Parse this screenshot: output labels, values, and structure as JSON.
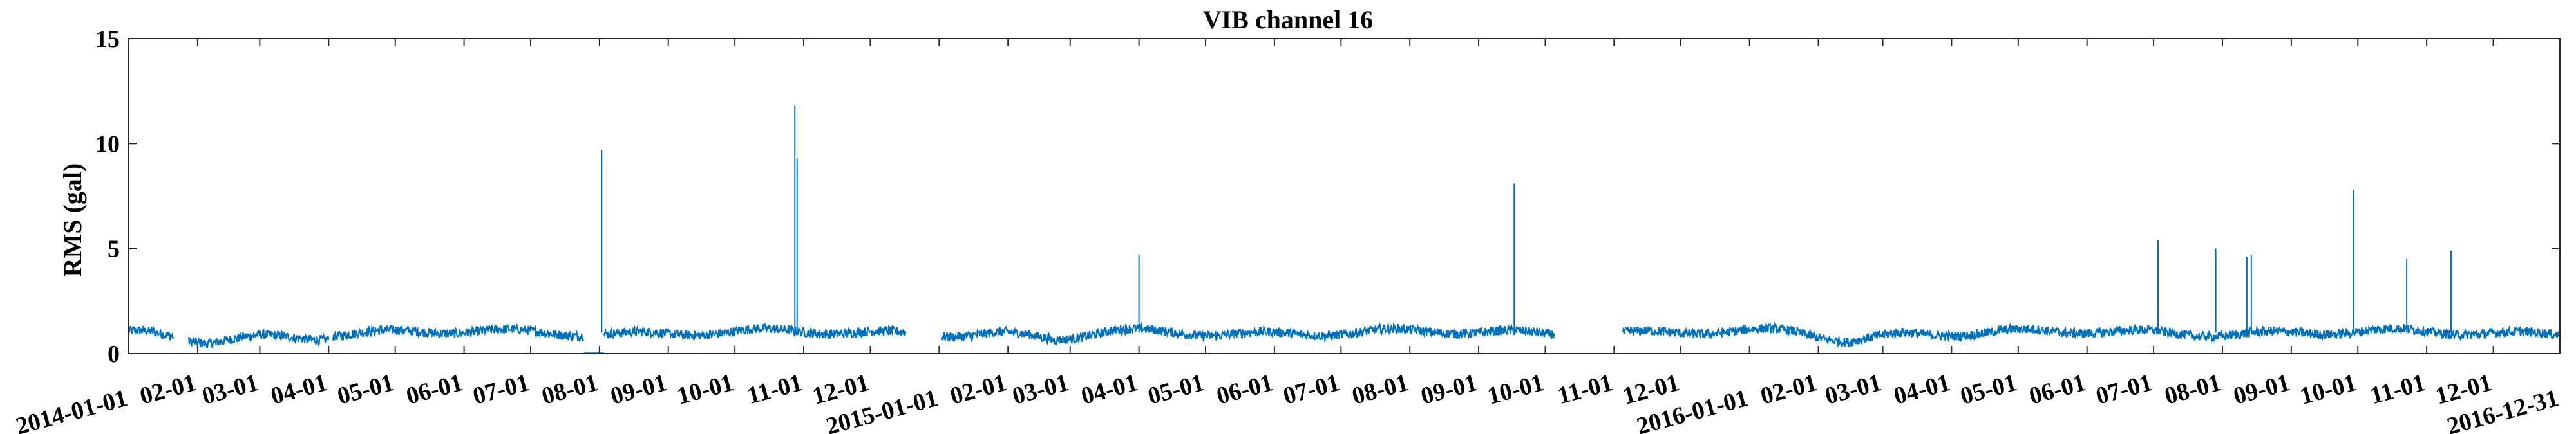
{
  "chart_data": {
    "type": "line",
    "title": "VIB channel 16",
    "xlabel": "",
    "ylabel": "RMS (gal)",
    "ylim": [
      0,
      15
    ],
    "yticks": [
      0,
      5,
      10,
      15
    ],
    "xlim": [
      "2014-01-01",
      "2016-12-31"
    ],
    "grid": false,
    "legend": "none",
    "line_color": "#0072BD",
    "xtick_labels": [
      "2014-01-01",
      "02-01",
      "03-01",
      "04-01",
      "05-01",
      "06-01",
      "07-01",
      "08-01",
      "09-01",
      "10-01",
      "11-01",
      "12-01",
      "2015-01-01",
      "02-01",
      "03-01",
      "04-01",
      "05-01",
      "06-01",
      "07-01",
      "08-01",
      "09-01",
      "10-01",
      "11-01",
      "12-01",
      "2016-01-01",
      "02-01",
      "03-01",
      "04-01",
      "05-01",
      "06-01",
      "07-01",
      "08-01",
      "09-01",
      "10-01",
      "11-01",
      "12-01",
      "2016-12-31"
    ],
    "xtick_dates": [
      "2014-01-01",
      "2014-02-01",
      "2014-03-01",
      "2014-04-01",
      "2014-05-01",
      "2014-06-01",
      "2014-07-01",
      "2014-08-01",
      "2014-09-01",
      "2014-10-01",
      "2014-11-01",
      "2014-12-01",
      "2015-01-01",
      "2015-02-01",
      "2015-03-01",
      "2015-04-01",
      "2015-05-01",
      "2015-06-01",
      "2015-07-01",
      "2015-08-01",
      "2015-09-01",
      "2015-10-01",
      "2015-11-01",
      "2015-12-01",
      "2016-01-01",
      "2016-02-01",
      "2016-03-01",
      "2016-04-01",
      "2016-05-01",
      "2016-06-01",
      "2016-07-01",
      "2016-08-01",
      "2016-09-01",
      "2016-10-01",
      "2016-11-01",
      "2016-12-01",
      "2016-12-31"
    ],
    "segments": [
      {
        "start": "2014-01-01",
        "end": "2014-01-21",
        "level": 0.9
      },
      {
        "start": "2014-01-28",
        "end": "2014-04-01",
        "level": 0.85
      },
      {
        "start": "2014-04-03",
        "end": "2014-07-25",
        "level": 1.0
      },
      {
        "start": "2014-07-25",
        "end": "2014-08-03",
        "level": 0.0
      },
      {
        "start": "2014-08-03",
        "end": "2014-12-17",
        "level": 1.0
      },
      {
        "start": "2015-01-02",
        "end": "2015-10-05",
        "level": 1.0
      },
      {
        "start": "2015-11-05",
        "end": "2016-12-31",
        "level": 1.0
      }
    ],
    "spikes": [
      {
        "date": "2014-08-02",
        "value": 9.7
      },
      {
        "date": "2014-10-28",
        "value": 11.8
      },
      {
        "date": "2014-10-29",
        "value": 9.3
      },
      {
        "date": "2015-04-01",
        "value": 4.7
      },
      {
        "date": "2015-09-17",
        "value": 8.1
      },
      {
        "date": "2016-07-03",
        "value": 5.4
      },
      {
        "date": "2016-07-29",
        "value": 5.0
      },
      {
        "date": "2016-08-12",
        "value": 4.6
      },
      {
        "date": "2016-08-14",
        "value": 4.7
      },
      {
        "date": "2016-09-29",
        "value": 7.8
      },
      {
        "date": "2016-10-23",
        "value": 4.5
      },
      {
        "date": "2016-11-12",
        "value": 4.9
      }
    ]
  }
}
